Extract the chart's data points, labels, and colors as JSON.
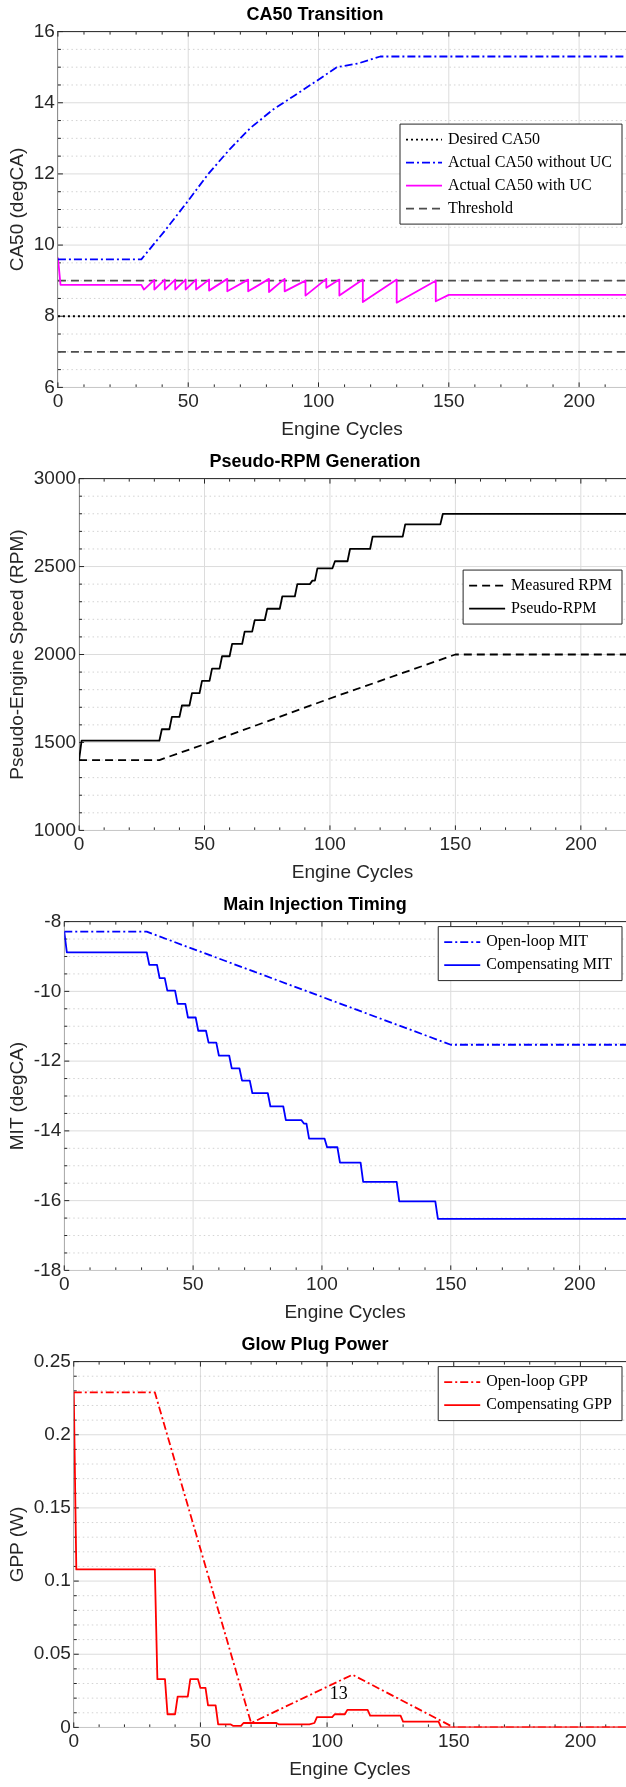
{
  "chart_data": [
    {
      "type": "line",
      "title": "CA50 Transition",
      "xlabel": "Engine Cycles",
      "ylabel": "CA50 (degCA)",
      "xlim": [
        0,
        218
      ],
      "ylim": [
        6,
        16
      ],
      "xticks": [
        0,
        {
          "value": 10,
          "label": null
        },
        {
          "value": 20,
          "label": null
        },
        {
          "value": 30,
          "label": null
        },
        {
          "value": 40,
          "label": null
        },
        50,
        {
          "value": 60,
          "label": null
        },
        {
          "value": 70,
          "label": null
        },
        {
          "value": 80,
          "label": null
        },
        {
          "value": 90,
          "label": null
        },
        100,
        {
          "value": 110,
          "label": null
        },
        {
          "value": 120,
          "label": null
        },
        {
          "value": 130,
          "label": null
        },
        {
          "value": 140,
          "label": null
        },
        150,
        {
          "value": 160,
          "label": null
        },
        {
          "value": 170,
          "label": null
        },
        {
          "value": 180,
          "label": null
        },
        {
          "value": 190,
          "label": null
        },
        200,
        {
          "value": 210,
          "label": null
        }
      ],
      "yticks": [
        6,
        {
          "value": 6.5,
          "label": null
        },
        {
          "value": 7,
          "label": null
        },
        {
          "value": 7.5,
          "label": null
        },
        8,
        {
          "value": 8.5,
          "label": null
        },
        {
          "value": 9,
          "label": null
        },
        {
          "value": 9.5,
          "label": null
        },
        10,
        {
          "value": 10.5,
          "label": null
        },
        {
          "value": 11,
          "label": null
        },
        {
          "value": 11.5,
          "label": null
        },
        12,
        {
          "value": 12.5,
          "label": null
        },
        {
          "value": 13,
          "label": null
        },
        {
          "value": 13.5,
          "label": null
        },
        14,
        {
          "value": 14.5,
          "label": null
        },
        {
          "value": 15,
          "label": null
        },
        {
          "value": 15.5,
          "label": null
        },
        16
      ],
      "grid": true,
      "legend": "right",
      "marker": "none",
      "series": [
        {
          "name": "Desired CA50",
          "color": "#000000",
          "line_style": "dotted",
          "x": [
            0,
            218
          ],
          "values": [
            8,
            8
          ]
        },
        {
          "name": "Actual CA50 without UC",
          "color": "#0000ff",
          "line_style": "dashdot",
          "x": [
            0,
            32,
            41,
            49.5,
            57.7,
            66,
            74,
            82.4,
            90.7,
            99,
            107,
            115,
            123.7,
            140,
            218
          ],
          "values": [
            9.6,
            9.6,
            10.4,
            11.2,
            12.0,
            12.7,
            13.3,
            13.8,
            14.2,
            14.6,
            15.0,
            15.1,
            15.3,
            15.3,
            15.3
          ]
        },
        {
          "name": "Actual CA50 with UC",
          "color": "#ff00ff",
          "line_style": "solid",
          "x": [
            0,
            1,
            32,
            33,
            37,
            37,
            41,
            41,
            45,
            45,
            49,
            49,
            53,
            53,
            58,
            58,
            65,
            65,
            73,
            73,
            81,
            81,
            87,
            87,
            95,
            95,
            103,
            103,
            108,
            108,
            117,
            117,
            130,
            130,
            145,
            145,
            150,
            218
          ],
          "values": [
            9.65,
            8.88,
            8.88,
            8.75,
            9.02,
            8.75,
            9.03,
            8.75,
            9.03,
            8.75,
            9.03,
            8.75,
            9.03,
            8.75,
            9.03,
            8.72,
            9.05,
            8.7,
            9.03,
            8.7,
            9.05,
            8.68,
            9.05,
            8.7,
            9.0,
            8.58,
            9.05,
            8.8,
            9.03,
            8.58,
            9.03,
            8.4,
            9.03,
            8.38,
            9.0,
            8.42,
            8.6,
            8.6
          ]
        },
        {
          "name": "Threshold",
          "color": "#4d4d4d",
          "line_style": "dashed",
          "x": [
            0,
            218
          ],
          "values": [
            9,
            9
          ]
        },
        {
          "color": "#4d4d4d",
          "line_style": "dashed",
          "x": [
            0,
            218
          ],
          "values": [
            7,
            7
          ]
        }
      ]
    },
    {
      "type": "line",
      "title": "Pseudo-RPM Generation",
      "xlabel": "Engine Cycles",
      "ylabel": "Pseudo-Engine Speed (RPM)",
      "xlim": [
        0,
        218
      ],
      "ylim": [
        1000,
        3000
      ],
      "xticks": [
        0,
        {
          "value": 10,
          "label": null
        },
        {
          "value": 20,
          "label": null
        },
        {
          "value": 30,
          "label": null
        },
        {
          "value": 40,
          "label": null
        },
        50,
        {
          "value": 60,
          "label": null
        },
        {
          "value": 70,
          "label": null
        },
        {
          "value": 80,
          "label": null
        },
        {
          "value": 90,
          "label": null
        },
        100,
        {
          "value": 110,
          "label": null
        },
        {
          "value": 120,
          "label": null
        },
        {
          "value": 130,
          "label": null
        },
        {
          "value": 140,
          "label": null
        },
        150,
        {
          "value": 160,
          "label": null
        },
        {
          "value": 170,
          "label": null
        },
        {
          "value": 180,
          "label": null
        },
        {
          "value": 190,
          "label": null
        },
        200,
        {
          "value": 210,
          "label": null
        }
      ],
      "yticks": [
        1000,
        {
          "value": 1100,
          "label": null
        },
        {
          "value": 1200,
          "label": null
        },
        {
          "value": 1300,
          "label": null
        },
        {
          "value": 1400,
          "label": null
        },
        1500,
        {
          "value": 1600,
          "label": null
        },
        {
          "value": 1700,
          "label": null
        },
        {
          "value": 1800,
          "label": null
        },
        {
          "value": 1900,
          "label": null
        },
        2000,
        {
          "value": 2100,
          "label": null
        },
        {
          "value": 2200,
          "label": null
        },
        {
          "value": 2300,
          "label": null
        },
        {
          "value": 2400,
          "label": null
        },
        2500,
        {
          "value": 2600,
          "label": null
        },
        {
          "value": 2700,
          "label": null
        },
        {
          "value": 2800,
          "label": null
        },
        {
          "value": 2900,
          "label": null
        },
        3000
      ],
      "grid": true,
      "legend": "right",
      "marker": "none",
      "series": [
        {
          "name": "Measured RPM",
          "color": "#000000",
          "line_style": "dashed",
          "x": [
            0,
            32,
            50,
            100,
            150,
            218
          ],
          "values": [
            1400,
            1400,
            1490,
            1750,
            2000,
            2000
          ]
        },
        {
          "name": "Pseudo-RPM",
          "color": "#000000",
          "line_style": "solid",
          "x": [
            0,
            1,
            32,
            33,
            36,
            37,
            40,
            41,
            44,
            45,
            48,
            49,
            52,
            53,
            56,
            57,
            60,
            61,
            65,
            66,
            69,
            70,
            74,
            75,
            80,
            81,
            86,
            87,
            92,
            93,
            94,
            95,
            101,
            102,
            107,
            108,
            116,
            117,
            129,
            130,
            144,
            145,
            218
          ],
          "values": [
            1400,
            1510,
            1510,
            1575,
            1575,
            1645,
            1645,
            1710,
            1710,
            1780,
            1780,
            1850,
            1850,
            1920,
            1920,
            1990,
            1990,
            2060,
            2060,
            2130,
            2130,
            2195,
            2195,
            2260,
            2260,
            2330,
            2330,
            2400,
            2400,
            2420,
            2420,
            2490,
            2490,
            2530,
            2530,
            2600,
            2600,
            2670,
            2670,
            2740,
            2740,
            2800,
            2800
          ]
        }
      ]
    },
    {
      "type": "line",
      "title": "Main Injection Timing",
      "xlabel": "Engine Cycles",
      "ylabel": "MIT (degCA)",
      "xlim": [
        0,
        218
      ],
      "ylim": [
        -18,
        -8
      ],
      "xticks": [
        0,
        {
          "value": 10,
          "label": null
        },
        {
          "value": 20,
          "label": null
        },
        {
          "value": 30,
          "label": null
        },
        {
          "value": 40,
          "label": null
        },
        50,
        {
          "value": 60,
          "label": null
        },
        {
          "value": 70,
          "label": null
        },
        {
          "value": 80,
          "label": null
        },
        {
          "value": 90,
          "label": null
        },
        100,
        {
          "value": 110,
          "label": null
        },
        {
          "value": 120,
          "label": null
        },
        {
          "value": 130,
          "label": null
        },
        {
          "value": 140,
          "label": null
        },
        150,
        {
          "value": 160,
          "label": null
        },
        {
          "value": 170,
          "label": null
        },
        {
          "value": 180,
          "label": null
        },
        {
          "value": 190,
          "label": null
        },
        200,
        {
          "value": 210,
          "label": null
        }
      ],
      "yticks": [
        -18,
        {
          "value": -17.5,
          "label": null
        },
        {
          "value": -17,
          "label": null
        },
        {
          "value": -16.5,
          "label": null
        },
        -16,
        {
          "value": -15.5,
          "label": null
        },
        {
          "value": -15,
          "label": null
        },
        {
          "value": -14.5,
          "label": null
        },
        -14,
        {
          "value": -13.5,
          "label": null
        },
        {
          "value": -13,
          "label": null
        },
        {
          "value": -12.5,
          "label": null
        },
        -12,
        {
          "value": -11.5,
          "label": null
        },
        {
          "value": -11,
          "label": null
        },
        {
          "value": -10.5,
          "label": null
        },
        -10,
        {
          "value": -9.5,
          "label": null
        },
        {
          "value": -9,
          "label": null
        },
        {
          "value": -8.5,
          "label": null
        },
        -8
      ],
      "grid": true,
      "legend": "top right",
      "marker": "none",
      "series": [
        {
          "name": "Open-loop MIT",
          "color": "#0000ff",
          "line_style": "dashdot",
          "x": [
            0,
            32,
            150,
            218
          ],
          "values": [
            -8.29,
            -8.29,
            -11.53,
            -11.53
          ]
        },
        {
          "name": "Compensating MIT",
          "color": "#0000ff",
          "line_style": "solid",
          "x": [
            0,
            1,
            32,
            33,
            36,
            37,
            39,
            40,
            43,
            44,
            47,
            48,
            51,
            52,
            55,
            56,
            59,
            60,
            64,
            65,
            68,
            69,
            72,
            73,
            79,
            80,
            85,
            86,
            92,
            93,
            94,
            95,
            101,
            102,
            106,
            107,
            115,
            116,
            129,
            130,
            144,
            145,
            218
          ],
          "values": [
            -8.29,
            -8.88,
            -8.88,
            -9.24,
            -9.24,
            -9.62,
            -9.62,
            -9.98,
            -9.98,
            -10.36,
            -10.36,
            -10.75,
            -10.75,
            -11.13,
            -11.13,
            -11.47,
            -11.47,
            -11.84,
            -11.84,
            -12.21,
            -12.21,
            -12.56,
            -12.56,
            -12.92,
            -12.92,
            -13.3,
            -13.3,
            -13.69,
            -13.69,
            -13.79,
            -13.79,
            -14.22,
            -14.22,
            -14.47,
            -14.47,
            -14.91,
            -14.91,
            -15.46,
            -15.46,
            -16.02,
            -16.02,
            -16.52,
            -16.52
          ]
        }
      ]
    },
    {
      "type": "line",
      "title": "Glow Plug Power",
      "xlabel": "Engine Cycles",
      "ylabel": "GPP (W)",
      "xlim": [
        0,
        218
      ],
      "ylim": [
        0,
        0.25
      ],
      "xticks": [
        0,
        {
          "value": 10,
          "label": null
        },
        {
          "value": 20,
          "label": null
        },
        {
          "value": 30,
          "label": null
        },
        {
          "value": 40,
          "label": null
        },
        50,
        {
          "value": 60,
          "label": null
        },
        {
          "value": 70,
          "label": null
        },
        {
          "value": 80,
          "label": null
        },
        {
          "value": 90,
          "label": null
        },
        100,
        {
          "value": 110,
          "label": null
        },
        {
          "value": 120,
          "label": null
        },
        {
          "value": 130,
          "label": null
        },
        {
          "value": 140,
          "label": null
        },
        150,
        {
          "value": 160,
          "label": null
        },
        {
          "value": 170,
          "label": null
        },
        {
          "value": 180,
          "label": null
        },
        {
          "value": 190,
          "label": null
        },
        200,
        {
          "value": 210,
          "label": null
        }
      ],
      "yticks": [
        0,
        {
          "value": 0.01,
          "label": null
        },
        {
          "value": 0.02,
          "label": null
        },
        {
          "value": 0.03,
          "label": null
        },
        {
          "value": 0.04,
          "label": null
        },
        0.05,
        {
          "value": 0.06,
          "label": null
        },
        {
          "value": 0.07,
          "label": null
        },
        {
          "value": 0.08,
          "label": null
        },
        {
          "value": 0.09,
          "label": null
        },
        0.1,
        {
          "value": 0.11,
          "label": null
        },
        {
          "value": 0.12,
          "label": null
        },
        {
          "value": 0.13,
          "label": null
        },
        {
          "value": 0.14,
          "label": null
        },
        0.15,
        {
          "value": 0.16,
          "label": null
        },
        {
          "value": 0.17,
          "label": null
        },
        {
          "value": 0.18,
          "label": null
        },
        {
          "value": 0.19,
          "label": null
        },
        0.2,
        {
          "value": 0.21,
          "label": null
        },
        {
          "value": 0.22,
          "label": null
        },
        {
          "value": 0.23,
          "label": null
        },
        {
          "value": 0.24,
          "label": null
        },
        0.25
      ],
      "grid": true,
      "legend": "top right",
      "marker": "none",
      "annotations": [
        "13"
      ],
      "series": [
        {
          "name": "Open-loop GPP",
          "color": "#ff0000",
          "line_style": "dashdot",
          "x": [
            0,
            32,
            70,
            110,
            150,
            218
          ],
          "values": [
            0.229,
            0.229,
            0.003,
            0.036,
            0,
            0
          ]
        },
        {
          "name": "Compensating GPP",
          "color": "#ff0000",
          "line_style": "solid",
          "x": [
            0,
            1,
            32,
            33,
            36,
            37,
            40,
            41,
            45,
            46,
            49,
            50,
            52,
            53,
            56,
            57,
            62,
            63,
            66,
            67,
            80,
            81,
            93,
            95,
            96,
            102,
            103,
            107,
            108,
            116,
            117,
            129,
            130,
            144,
            145,
            218
          ],
          "values": [
            0.229,
            0.108,
            0.108,
            0.033,
            0.033,
            0.009,
            0.009,
            0.021,
            0.021,
            0.033,
            0.033,
            0.027,
            0.027,
            0.015,
            0.015,
            0.002,
            0.002,
            0.001,
            0.001,
            0.003,
            0.003,
            0.002,
            0.002,
            0.003,
            0.007,
            0.007,
            0.009,
            0.009,
            0.012,
            0.012,
            0.008,
            0.008,
            0.004,
            0.004,
            0,
            0
          ]
        }
      ]
    }
  ]
}
